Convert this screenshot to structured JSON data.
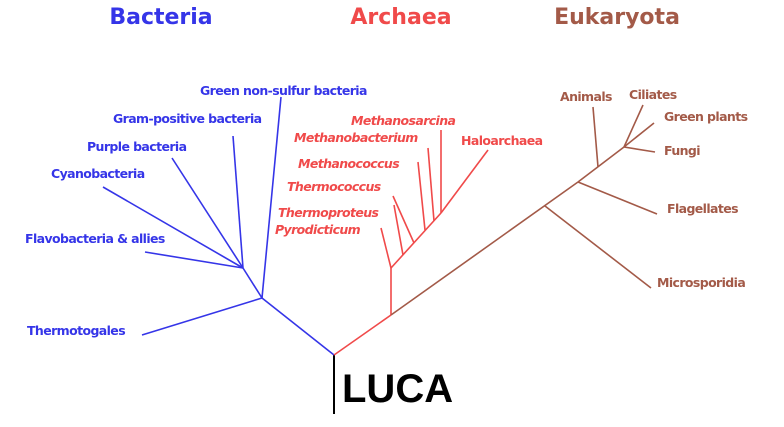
{
  "colors": {
    "bacteria": "#3535e8",
    "archaea": "#f04a4a",
    "eukaryota": "#a35a48",
    "root": "#000000"
  },
  "domains": {
    "bacteria": "Bacteria",
    "archaea": "Archaea",
    "eukaryota": "Eukaryota"
  },
  "root_label": "LUCA",
  "bacteria": {
    "green_nonsulfur": "Green non-sulfur bacteria",
    "gram_positive": "Gram-positive bacteria",
    "purple": "Purple bacteria",
    "cyanobacteria": "Cyanobacteria",
    "flavobacteria": "Flavobacteria & allies",
    "thermotogales": "Thermotogales"
  },
  "archaea": {
    "methanosarcina": "Methanosarcina",
    "methanobacterium": "Methanobacterium",
    "haloarchaea": "Haloarchaea",
    "methanococcus": "Methanococcus",
    "thermococcus": "Thermococcus",
    "thermoproteus": "Thermoproteus",
    "pyrodicticum": "Pyrodicticum"
  },
  "eukaryota": {
    "animals": "Animals",
    "ciliates": "Ciliates",
    "green_plants": "Green plants",
    "fungi": "Fungi",
    "flagellates": "Flagellates",
    "microsporidia": "Microsporidia"
  }
}
